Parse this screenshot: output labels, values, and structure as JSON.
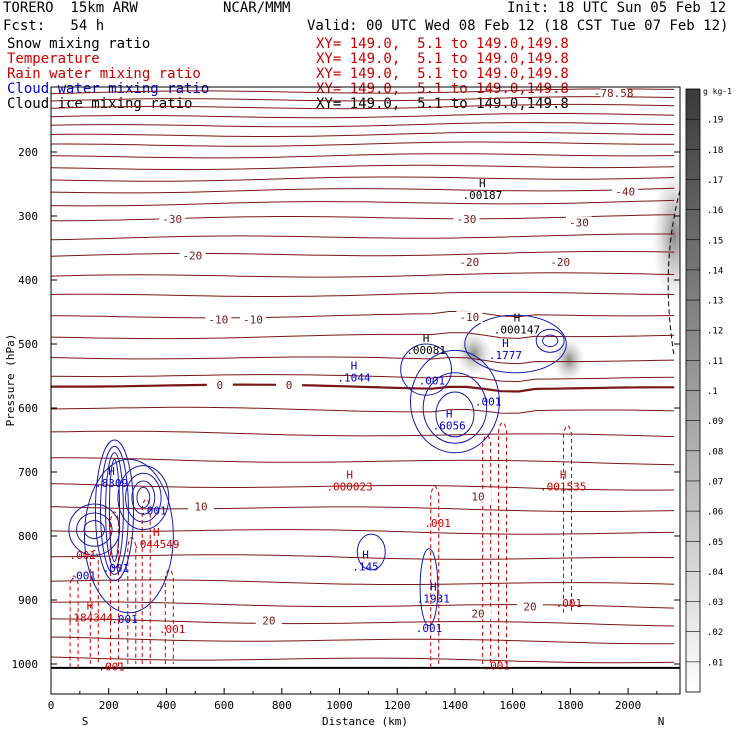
{
  "header": {
    "model": "TORERO  15km ARW",
    "center": "NCAR/MMM",
    "init": "Init: 18 UTC Sun 05 Feb 12",
    "fcst": "Fcst:   54 h",
    "valid": "Valid: 00 UTC Wed 08 Feb 12 (18 CST Tue 07 Feb 12)"
  },
  "fields": [
    {
      "name": "Snow mixing ratio",
      "color": "#000000",
      "xy": "XY= 149.0,  5.1 to 149.0,149.8",
      "xy_color": "#cc0000"
    },
    {
      "name": "Temperature",
      "color": "#cc0000",
      "xy": "XY= 149.0,  5.1 to 149.0,149.8",
      "xy_color": "#cc0000"
    },
    {
      "name": "Rain water mixing ratio",
      "color": "#cc0000",
      "xy": "XY= 149.0,  5.1 to 149.0,149.8",
      "xy_color": "#cc0000"
    },
    {
      "name": "Cloud water mixing ratio",
      "color": "#0000cc",
      "xy": "XY= 149.0,  5.1 to 149.0,149.8",
      "xy_color": "#cc0000"
    },
    {
      "name": "Cloud ice mixing ratio",
      "color": "#000000",
      "xy": "XY= 149.0,  5.1 to 149.0,149.8",
      "xy_color": "#000000"
    }
  ],
  "chart_data": {
    "type": "cross-section",
    "xlabel": "Distance (km)",
    "ylabel": "Pressure (hPa)",
    "xlim": [
      0,
      2180
    ],
    "ylim": [
      1000,
      100
    ],
    "xticks": [
      "0",
      "200",
      "400",
      "600",
      "800",
      "1000",
      "1200",
      "1400",
      "1600",
      "1800",
      "2000"
    ],
    "yticks": [
      "200",
      "300",
      "400",
      "500",
      "600",
      "700",
      "800",
      "900",
      "1000"
    ],
    "x_end_labels": {
      "left": "S",
      "right": "N"
    },
    "colorbar": {
      "unit": "g kg-1",
      "levels": [
        ".01",
        ".02",
        ".03",
        ".04",
        ".05",
        ".06",
        ".07",
        ".08",
        ".09",
        ".1",
        ".11",
        ".12",
        ".13",
        ".14",
        ".15",
        ".16",
        ".17",
        ".18",
        ".19"
      ]
    },
    "temperature_isotherms": [
      {
        "label": "-78.58",
        "x": 1950,
        "p": 108
      },
      {
        "label": "-40",
        "x": 1990,
        "p": 262
      },
      {
        "label": "-30",
        "x": 420,
        "p": 305
      },
      {
        "label": "-30",
        "x": 1440,
        "p": 305
      },
      {
        "label": "-30",
        "x": 1830,
        "p": 310
      },
      {
        "label": "-20",
        "x": 490,
        "p": 362
      },
      {
        "label": "-20",
        "x": 1450,
        "p": 372
      },
      {
        "label": "-20",
        "x": 1765,
        "p": 372
      },
      {
        "label": "-10",
        "x": 580,
        "p": 462
      },
      {
        "label": "-10",
        "x": 700,
        "p": 462
      },
      {
        "label": "-10",
        "x": 1450,
        "p": 458
      },
      {
        "label": "0",
        "x": 585,
        "p": 564
      },
      {
        "label": "0",
        "x": 825,
        "p": 564
      },
      {
        "label": "10",
        "x": 520,
        "p": 754
      },
      {
        "label": "10",
        "x": 1480,
        "p": 738
      },
      {
        "label": "20",
        "x": 755,
        "p": 932
      },
      {
        "label": "20",
        "x": 1480,
        "p": 921
      },
      {
        "label": "20",
        "x": 1660,
        "p": 910
      }
    ],
    "extrema": [
      {
        "mark": "H",
        "value": ".00187",
        "color": "#000000",
        "x": 1495,
        "p": 255
      },
      {
        "mark": "H",
        "value": ".000147",
        "color": "#000000",
        "x": 1615,
        "p": 465
      },
      {
        "mark": "H",
        "value": ".00081",
        "color": "#000000",
        "x": 1300,
        "p": 497
      },
      {
        "mark": "H",
        "value": ".1777",
        "color": "#0000cc",
        "x": 1575,
        "p": 505
      },
      {
        "mark": "H",
        "value": ".1044",
        "color": "#0000cc",
        "x": 1050,
        "p": 540
      },
      {
        "mark": "H",
        "value": ".6056",
        "color": "#0000cc",
        "x": 1380,
        "p": 615
      },
      {
        "mark": "H",
        "value": ".8309",
        "color": "#0000cc",
        "x": 210,
        "p": 705
      },
      {
        "mark": "H",
        "value": ".000023",
        "color": "#cc0000",
        "x": 1035,
        "p": 710
      },
      {
        "mark": "H",
        "value": ".001535",
        "color": "#cc0000",
        "x": 1775,
        "p": 710
      },
      {
        "mark": "H",
        "value": ".044549",
        "color": "#cc0000",
        "x": 365,
        "p": 800
      },
      {
        "mark": "H",
        "value": ".145",
        "color": "#0000cc",
        "x": 1090,
        "p": 835
      },
      {
        "mark": "H",
        "value": ".1931",
        "color": "#0000cc",
        "x": 1325,
        "p": 885
      },
      {
        "mark": "H",
        "value": ".184344",
        "color": "#cc0000",
        "x": 135,
        "p": 915
      }
    ],
    "contour_labels": [
      {
        "value": ".001",
        "color": "#0000cc",
        "x": 1320,
        "p": 557
      },
      {
        "value": ".001",
        "color": "#0000cc",
        "x": 1515,
        "p": 590
      },
      {
        "value": ".001",
        "color": "#0000cc",
        "x": 355,
        "p": 760
      },
      {
        "value": ".001",
        "color": "#0000cc",
        "x": 110,
        "p": 862
      },
      {
        "value": ".001",
        "color": "#0000cc",
        "x": 225,
        "p": 850
      },
      {
        "value": ".001",
        "color": "#0000cc",
        "x": 255,
        "p": 930
      },
      {
        "value": ".001",
        "color": "#0000cc",
        "x": 1310,
        "p": 944
      },
      {
        "value": ".001",
        "color": "#cc0000",
        "x": 1340,
        "p": 780
      },
      {
        "value": ".001",
        "color": "#cc0000",
        "x": 110,
        "p": 830
      },
      {
        "value": ".001",
        "color": "#cc0000",
        "x": 420,
        "p": 945
      },
      {
        "value": ".001",
        "color": "#cc0000",
        "x": 1795,
        "p": 905
      },
      {
        "value": ".001",
        "color": "#cc0000",
        "x": 210,
        "p": 1004
      },
      {
        "value": ".001",
        "color": "#cc0000",
        "x": 1545,
        "p": 1002
      }
    ]
  }
}
